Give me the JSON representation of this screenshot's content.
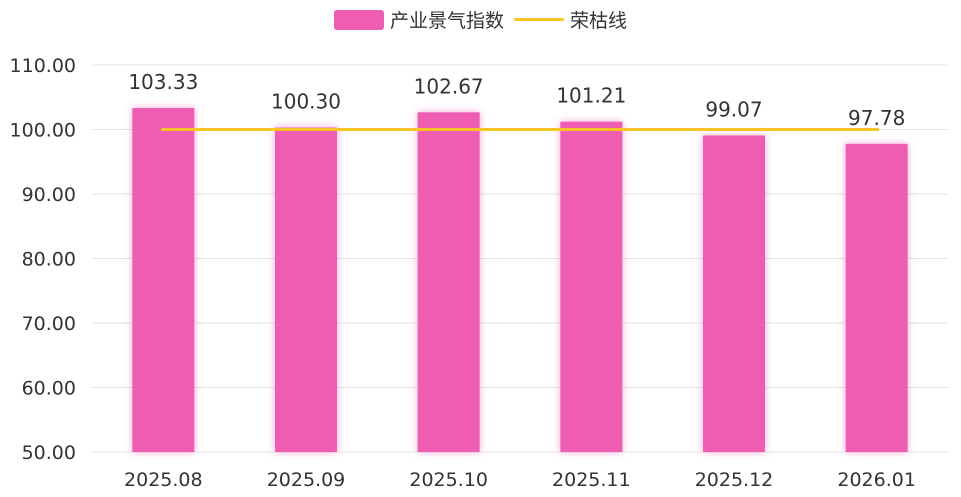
{
  "chart_data": {
    "type": "bar",
    "categories": [
      "2025.08",
      "2025.09",
      "2025.10",
      "2025.11",
      "2025.12",
      "2026.01"
    ],
    "series": [
      {
        "name": "产业景气指数",
        "type": "bar",
        "values": [
          103.33,
          100.3,
          102.67,
          101.21,
          99.07,
          97.78
        ],
        "data_labels": [
          "103.33",
          "100.30",
          "102.67",
          "101.21",
          "99.07",
          "97.78"
        ]
      },
      {
        "name": "荣枯线",
        "type": "line",
        "values": [
          100,
          100,
          100,
          100,
          100,
          100
        ]
      }
    ],
    "title": "",
    "xlabel": "",
    "ylabel": "",
    "ylim": [
      50,
      110
    ],
    "yticks": [
      "50.00",
      "60.00",
      "70.00",
      "80.00",
      "90.00",
      "100.00",
      "110.00"
    ],
    "grid": true,
    "legend": "top-center"
  },
  "colors": {
    "bar": "#ef5db3",
    "line": "#f7c325",
    "grid": "#e3e3e3",
    "text": "#333333"
  }
}
